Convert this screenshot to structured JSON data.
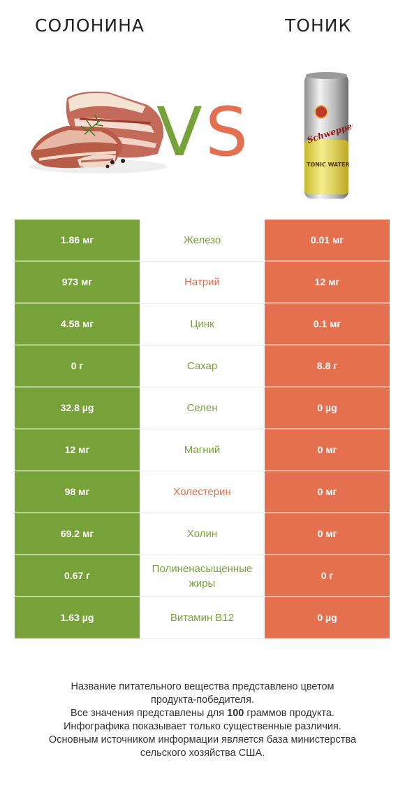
{
  "left_product": {
    "name": "СОЛОНИНА"
  },
  "right_product": {
    "name": "ТОНИК"
  },
  "vs": {
    "v": "V",
    "s": "S"
  },
  "colors": {
    "winner_left": "#77a23a",
    "winner_right": "#e5704f"
  },
  "rows": [
    {
      "left": "1.86 мг",
      "nutrient": "Железо",
      "right": "0.01 мг",
      "winner": "left"
    },
    {
      "left": "973 мг",
      "nutrient": "Натрий",
      "right": "12 мг",
      "winner": "right"
    },
    {
      "left": "4.58 мг",
      "nutrient": "Цинк",
      "right": "0.1 мг",
      "winner": "left"
    },
    {
      "left": "0 г",
      "nutrient": "Сахар",
      "right": "8.8 г",
      "winner": "left"
    },
    {
      "left": "32.8 µg",
      "nutrient": "Селен",
      "right": "0 µg",
      "winner": "left"
    },
    {
      "left": "12 мг",
      "nutrient": "Магний",
      "right": "0 мг",
      "winner": "left"
    },
    {
      "left": "98 мг",
      "nutrient": "Холестерин",
      "right": "0 мг",
      "winner": "right"
    },
    {
      "left": "69.2 мг",
      "nutrient": "Холин",
      "right": "0 мг",
      "winner": "left"
    },
    {
      "left": "0.67 г",
      "nutrient": "Полиненасыщенные жиры",
      "right": "0 г",
      "winner": "left"
    },
    {
      "left": "1.63 µg",
      "nutrient": "Витамин B12",
      "right": "0 µg",
      "winner": "left"
    }
  ],
  "can": {
    "brand": "Schweppes",
    "line1": "TONIC WATER"
  },
  "footer": {
    "line1": "Название питательного вещества представлено цветом",
    "line2": "продукта-победителя.",
    "line3_pre": "Все значения представлены для ",
    "line3_bold": "100",
    "line3_post": " граммов продукта.",
    "line4": "Инфографика показывает только существенные различия.",
    "line5": "Основным источником информации является база министерства",
    "line6": "сельского хозяйства США."
  }
}
